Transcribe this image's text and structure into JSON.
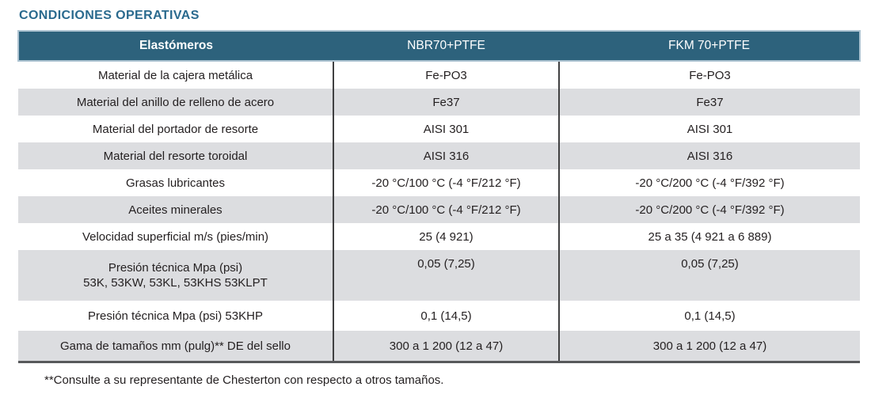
{
  "page": {
    "title": "CONDICIONES OPERATIVAS",
    "footnote": "**Consulte a su representante de Chesterton con respecto a otros tamaños."
  },
  "table": {
    "columns": [
      "Elastómeros",
      "NBR70+PTFE",
      "FKM 70+PTFE"
    ],
    "rows": [
      {
        "label": "Material de la cajera metálica",
        "values": [
          "Fe-PO3",
          "Fe-PO3"
        ]
      },
      {
        "label": "Material del anillo de relleno de acero",
        "values": [
          "Fe37",
          "Fe37"
        ]
      },
      {
        "label": "Material del portador de resorte",
        "values": [
          "AISI 301",
          "AISI 301"
        ]
      },
      {
        "label": "Material del resorte toroidal",
        "values": [
          "AISI 316",
          "AISI 316"
        ]
      },
      {
        "label": "Grasas lubricantes",
        "values": [
          "-20 °C/100 °C (-4 °F/212 °F)",
          "-20 °C/200 °C (-4 °F/392 °F)"
        ]
      },
      {
        "label": "Aceites minerales",
        "values": [
          "-20 °C/100 °C (-4 °F/212 °F)",
          "-20 °C/200 °C (-4 °F/392 °F)"
        ]
      },
      {
        "label": "Velocidad superficial m/s (pies/min)",
        "values": [
          "25 (4 921)",
          "25 a 35 (4 921 a 6 889)"
        ]
      },
      {
        "label": "Presión técnica Mpa (psi)\n53K, 53KW, 53KL, 53KHS 53KLPT",
        "values": [
          "0,05 (7,25)",
          "0,05 (7,25)"
        ]
      },
      {
        "label": "Presión técnica Mpa (psi) 53KHP",
        "values": [
          "0,1 (14,5)",
          "0,1 (14,5)"
        ]
      },
      {
        "label": "Gama de tamaños mm (pulg)** DE del sello",
        "values": [
          "300 a 1 200 (12 a 47)",
          "300 a 1 200 (12 a 47)"
        ]
      }
    ]
  },
  "colors": {
    "header_bg": "#2d627c",
    "header_border": "#aec4d2",
    "row_alt_bg": "#dcdde0",
    "title_color": "#2a6a8e",
    "text_color": "#231f20",
    "column_divider": "#404041",
    "bottom_border": "#58595b"
  }
}
